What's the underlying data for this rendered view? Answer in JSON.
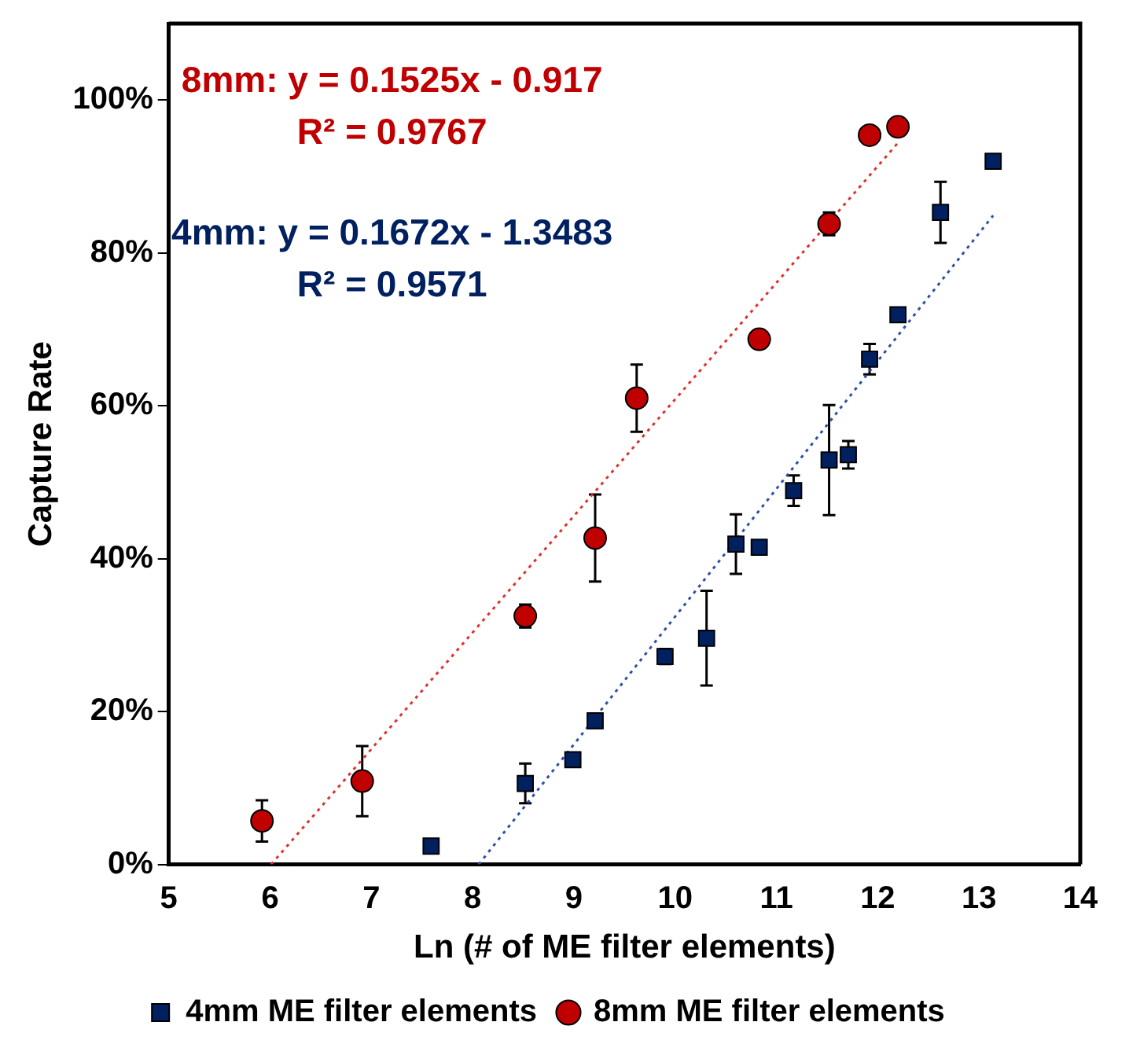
{
  "chart_data": {
    "type": "scatter",
    "xlabel": "Ln (# of ME filter elements)",
    "ylabel": "Capture Rate",
    "xlim": [
      5,
      14
    ],
    "xticks": [
      5,
      6,
      7,
      8,
      9,
      10,
      11,
      12,
      13,
      14
    ],
    "ylim": [
      0,
      110
    ],
    "yticks": [
      {
        "value": 0,
        "label": "0%"
      },
      {
        "value": 20,
        "label": "20%"
      },
      {
        "value": 40,
        "label": "40%"
      },
      {
        "value": 60,
        "label": "60%"
      },
      {
        "value": 80,
        "label": "80%"
      },
      {
        "value": 100,
        "label": "100%"
      }
    ],
    "grid": false,
    "legend": "bottom",
    "annotations": [
      "8mm: y = 0.1525x - 0.917",
      "R² = 0.9767",
      "4mm: y = 0.1672x - 1.3483",
      "R² = 0.9571"
    ],
    "series": [
      {
        "name": "4mm ME filter elements",
        "type": "scatter",
        "marker": "square",
        "color": "#002060",
        "x": [
          7.59,
          8.52,
          8.99,
          9.21,
          9.9,
          10.31,
          10.6,
          10.83,
          11.17,
          11.52,
          11.71,
          11.92,
          12.2,
          12.62,
          13.14
        ],
        "values": [
          2.4,
          10.6,
          13.7,
          18.8,
          27.2,
          29.6,
          41.9,
          41.5,
          48.9,
          52.9,
          53.6,
          66.1,
          71.9,
          85.3,
          92.0
        ],
        "errors": [
          null,
          2.6,
          null,
          null,
          1,
          6.2,
          3.9,
          null,
          2,
          7.2,
          1.8,
          2,
          null,
          4,
          null
        ]
      },
      {
        "name": "8mm ME filter elements",
        "type": "scatter",
        "marker": "circle",
        "color": "#c00000",
        "x": [
          5.92,
          6.91,
          8.52,
          9.21,
          9.62,
          10.83,
          11.52,
          11.92,
          12.2
        ],
        "values": [
          5.7,
          10.9,
          32.5,
          42.7,
          61.0,
          68.7,
          83.8,
          95.4,
          96.5
        ],
        "errors": [
          2.7,
          4.6,
          1.5,
          5.7,
          4.4,
          null,
          1.5,
          null,
          null
        ]
      },
      {
        "type": "line",
        "line_style": "dotted",
        "color": "#2f4fa8",
        "x": [
          8.06,
          13.14
        ],
        "values": [
          0,
          84.9
        ]
      },
      {
        "type": "line",
        "line_style": "dotted",
        "color": "#e03030",
        "x": [
          6.01,
          12.2
        ],
        "values": [
          0,
          94.4
        ]
      }
    ]
  }
}
